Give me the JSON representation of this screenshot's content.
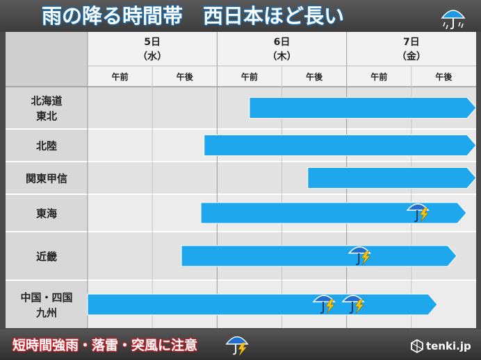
{
  "chart_data": {
    "type": "gantt",
    "title": "雨の降る時間帯　西日本ほど長い",
    "days": [
      {
        "label": "5日",
        "weekday": "（水）"
      },
      {
        "label": "6日",
        "weekday": "（木）"
      },
      {
        "label": "7日",
        "weekday": "（金）"
      }
    ],
    "periods": [
      "午前",
      "午後",
      "午前",
      "午後",
      "午前",
      "午後"
    ],
    "rows": [
      {
        "region": "北海道\n東北",
        "start": 2.5,
        "end": 6.0,
        "continues": true,
        "thunder_at": []
      },
      {
        "region": "北陸",
        "start": 1.8,
        "end": 6.0,
        "continues": true,
        "thunder_at": []
      },
      {
        "region": "関東甲信",
        "start": 3.4,
        "end": 6.0,
        "continues": true,
        "thunder_at": []
      },
      {
        "region": "東海",
        "start": 1.75,
        "end": 5.85,
        "continues": false,
        "thunder_at": [
          5.1
        ]
      },
      {
        "region": "近畿",
        "start": 1.45,
        "end": 5.7,
        "continues": false,
        "thunder_at": [
          4.2
        ]
      },
      {
        "region": "中国・四国\n九州",
        "start": 0.0,
        "end": 5.4,
        "continues": false,
        "thunder_at": [
          3.65,
          4.1
        ]
      }
    ],
    "colors": {
      "bar": "#1ea7ec",
      "grid": "#aaaaaa",
      "band_odd": "#e2e2e2",
      "band_even": "#ececec",
      "header": "#f2f2f2"
    }
  },
  "footer": {
    "warning": "短時間強雨・落雷・突風に注意",
    "logo": "tenki.jp"
  },
  "icons": {
    "title_icon": "umbrella-rain-icon",
    "bar_icon": "umbrella-thunder-icon",
    "logo_icon": "tenki-logo-icon"
  }
}
